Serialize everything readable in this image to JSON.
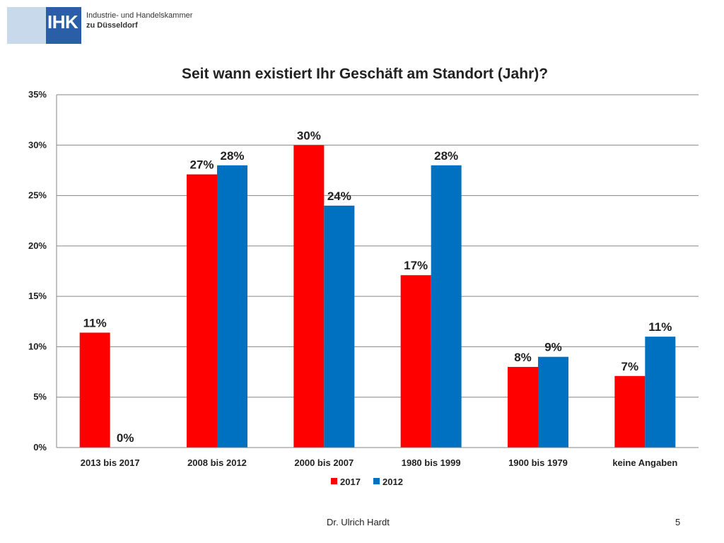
{
  "logo": {
    "mark_text": "IHK",
    "line1": "Industrie- und Handelskammer",
    "line2": "zu Düsseldorf"
  },
  "footer": {
    "author": "Dr. Ulrich Hardt",
    "page_number": "5"
  },
  "chart_data": {
    "type": "bar",
    "title": "Seit wann existiert Ihr Geschäft am Standort (Jahr)?",
    "categories": [
      "2013 bis 2017",
      "2008 bis 2012",
      "2000 bis 2007",
      "1980 bis 1999",
      "1900 bis 1979",
      "keine Angaben"
    ],
    "series": [
      {
        "name": "2017",
        "color": "#ff0000",
        "values": [
          11.4,
          27.1,
          30.0,
          17.1,
          8.0,
          7.1
        ],
        "labels": [
          "11%",
          "27%",
          "30%",
          "17%",
          "8%",
          "7%"
        ]
      },
      {
        "name": "2012",
        "color": "#0070c0",
        "values": [
          0,
          28.0,
          24.0,
          28.0,
          9.0,
          11.0
        ],
        "labels": [
          "0%",
          "28%",
          "24%",
          "28%",
          "9%",
          "11%"
        ]
      }
    ],
    "ylim": [
      0,
      35
    ],
    "yticks": [
      0,
      5,
      10,
      15,
      20,
      25,
      30,
      35
    ],
    "ytick_labels": [
      "0%",
      "5%",
      "10%",
      "15%",
      "20%",
      "25%",
      "30%",
      "35%"
    ],
    "grid": true,
    "legend_position": "bottom-center"
  }
}
